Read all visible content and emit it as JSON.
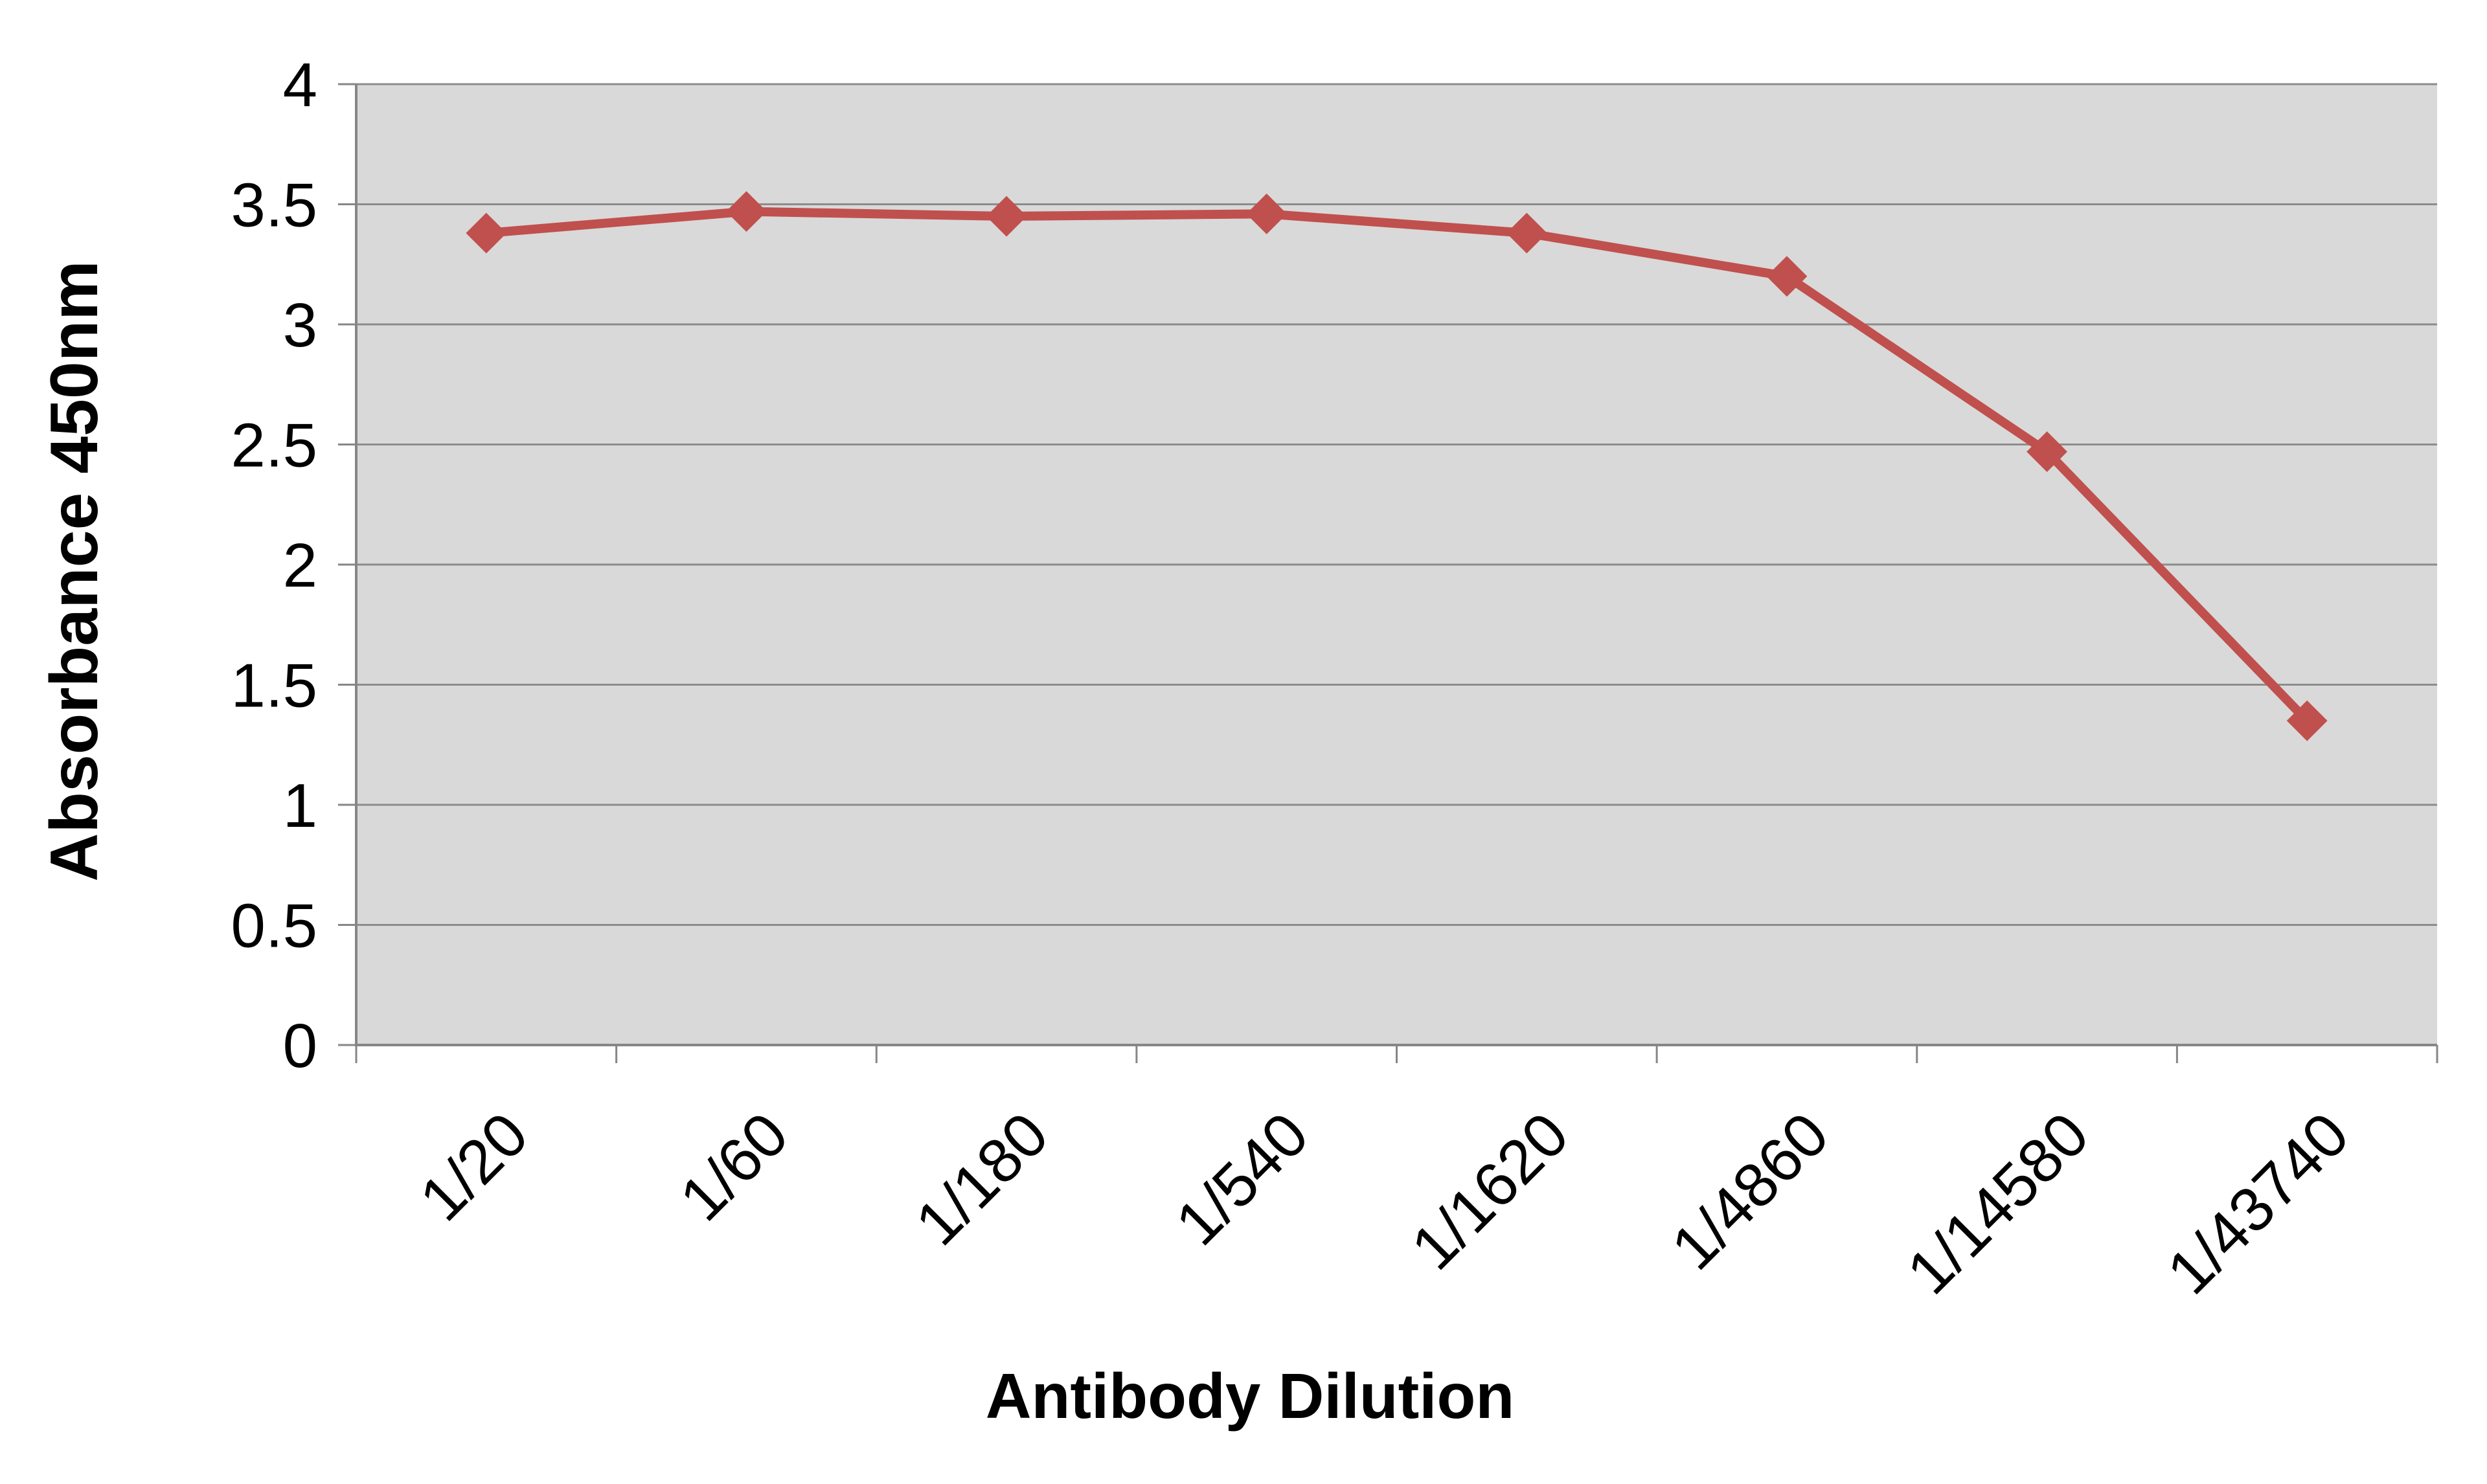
{
  "chart_data": {
    "type": "line",
    "title": "",
    "xlabel": "Antibody Dilution",
    "ylabel": "Absorbance 450nm",
    "categories": [
      "1/20",
      "1/60",
      "1/180",
      "1/540",
      "1/1620",
      "1/4860",
      "1/14580",
      "1/43740"
    ],
    "series": [
      {
        "values": [
          3.38,
          3.47,
          3.45,
          3.46,
          3.38,
          3.2,
          2.47,
          1.35
        ]
      }
    ],
    "ylim": [
      0,
      4
    ],
    "yticks": [
      "0",
      "0.5",
      "1",
      "1.5",
      "2",
      "2.5",
      "3",
      "3.5",
      "4"
    ],
    "grid": true,
    "legend": "none",
    "colors": {
      "series": "#C0504D",
      "plot_background": "#D9D9D9",
      "gridline": "#8C8C8C",
      "axis": "#868686"
    },
    "marker": "diamond"
  }
}
